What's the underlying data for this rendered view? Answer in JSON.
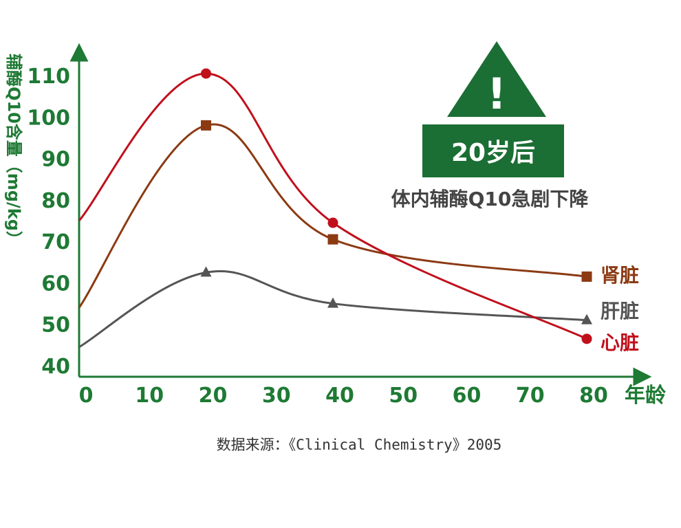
{
  "chart_data": {
    "type": "line",
    "xlabel": "年龄",
    "ylabel": "辅酶Q10含量（mg/kg）",
    "xlim": [
      0,
      80
    ],
    "ylim": [
      40,
      110
    ],
    "x_ticks": [
      "0",
      "10",
      "20",
      "30",
      "40",
      "50",
      "60",
      "70",
      "80"
    ],
    "y_ticks": [
      "40",
      "50",
      "60",
      "70",
      "80",
      "90",
      "100",
      "110"
    ],
    "series": [
      {
        "name": "肾脏",
        "marker": "square",
        "color": "#8b3a12",
        "x": [
          0,
          20,
          40,
          80
        ],
        "values": [
          54,
          98,
          70.5,
          61.5
        ]
      },
      {
        "name": "肝脏",
        "marker": "triangle",
        "color": "#555555",
        "x": [
          0,
          20,
          40,
          80
        ],
        "values": [
          44.5,
          62.5,
          55,
          51
        ]
      },
      {
        "name": "心脏",
        "marker": "circle",
        "color": "#c0101c",
        "x": [
          0,
          20,
          40,
          80
        ],
        "values": [
          75,
          110.5,
          74.5,
          46.5
        ]
      }
    ],
    "warning": {
      "symbol": "!",
      "badge": "20岁后",
      "caption": "体内辅酶Q10急剧下降"
    },
    "source": "数据来源：《Clinical Chemistry》2005",
    "colors": {
      "axis": "#1e7a34",
      "badge": "#1b6e34",
      "caption": "#444444"
    }
  }
}
